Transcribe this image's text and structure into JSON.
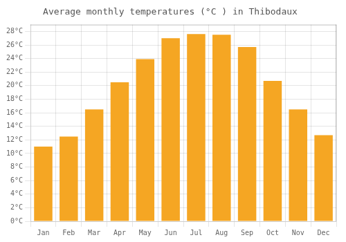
{
  "chart_data": {
    "type": "bar",
    "title": "Average monthly temperatures (°C ) in Thibodaux",
    "categories": [
      "Jan",
      "Feb",
      "Mar",
      "Apr",
      "May",
      "Jun",
      "Jul",
      "Aug",
      "Sep",
      "Oct",
      "Nov",
      "Dec"
    ],
    "values": [
      11.0,
      12.5,
      16.5,
      20.5,
      23.9,
      27.0,
      27.6,
      27.5,
      25.7,
      20.7,
      16.5,
      12.7
    ],
    "color": "#F5A623",
    "ylim": [
      0,
      29
    ],
    "yticks": [
      {
        "value": 0,
        "label": "0°C"
      },
      {
        "value": 2,
        "label": "2°C"
      },
      {
        "value": 4,
        "label": "4°C"
      },
      {
        "value": 6,
        "label": "6°C"
      },
      {
        "value": 8,
        "label": "8°C"
      },
      {
        "value": 10,
        "label": "10°C"
      },
      {
        "value": 12,
        "label": "12°C"
      },
      {
        "value": 14,
        "label": "14°C"
      },
      {
        "value": 16,
        "label": "16°C"
      },
      {
        "value": 18,
        "label": "18°C"
      },
      {
        "value": 20,
        "label": "20°C"
      },
      {
        "value": 22,
        "label": "22°C"
      },
      {
        "value": 24,
        "label": "24°C"
      },
      {
        "value": 26,
        "label": "26°C"
      },
      {
        "value": 28,
        "label": "28°C"
      }
    ],
    "grid": true
  }
}
